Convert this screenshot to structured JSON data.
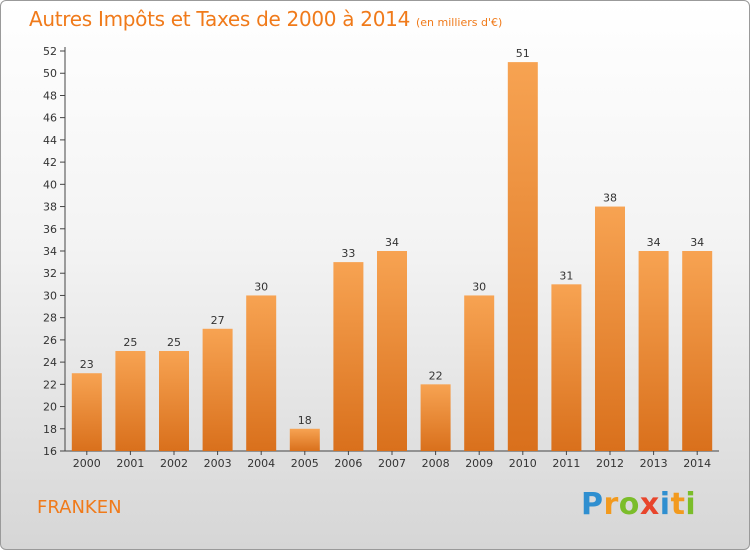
{
  "header": {
    "title": "Autres Impôts et Taxes de 2000 à 2014",
    "subtitle": "(en milliers d'€)"
  },
  "footer": {
    "city": "FRANKEN",
    "logo": [
      "P",
      "r",
      "o",
      "x",
      "i",
      "t",
      "i"
    ]
  },
  "colors": {
    "accent": "#f07a1a",
    "bar_top": "#f7a352",
    "bar_bottom": "#d9701c",
    "logo": [
      "#2f8fd0",
      "#f29a1e",
      "#7bbd2a",
      "#e8452c",
      "#2f8fd0",
      "#f29a1e",
      "#7bbd2a"
    ]
  },
  "chart_data": {
    "type": "bar",
    "title": "Autres Impôts et Taxes de 2000 à 2014",
    "subtitle": "(en milliers d'€)",
    "xlabel": "",
    "ylabel": "",
    "ylim": [
      16,
      52
    ],
    "yticks": [
      16,
      18,
      20,
      22,
      24,
      26,
      28,
      30,
      32,
      34,
      36,
      38,
      40,
      42,
      44,
      46,
      48,
      50,
      52
    ],
    "categories": [
      "2000",
      "2001",
      "2002",
      "2003",
      "2004",
      "2005",
      "2006",
      "2007",
      "2008",
      "2009",
      "2010",
      "2011",
      "2012",
      "2013",
      "2014"
    ],
    "values": [
      23,
      25,
      25,
      27,
      30,
      18,
      33,
      34,
      22,
      30,
      51,
      31,
      38,
      34,
      34
    ],
    "grid": false,
    "data_labels": true
  }
}
